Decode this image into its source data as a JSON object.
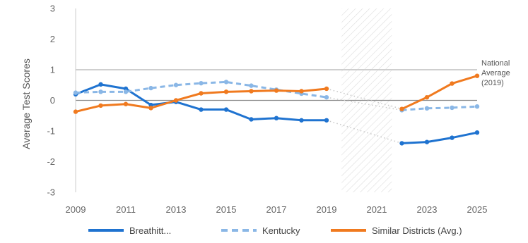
{
  "chart_data": {
    "type": "line",
    "ylabel": "Average Test Scores",
    "xlim": [
      2009,
      2025
    ],
    "ylim": [
      -3,
      3
    ],
    "x_ticks": [
      2009,
      2011,
      2013,
      2015,
      2017,
      2019,
      2021,
      2023,
      2025
    ],
    "y_ticks": [
      3,
      2,
      1,
      0,
      -1,
      -2,
      -3
    ],
    "gap_years": [
      2019.6,
      2021.6
    ],
    "reference_line": {
      "value": 1,
      "label_lines": [
        "National",
        "Average",
        "(2019)"
      ]
    },
    "zero_line": 0,
    "grid": false,
    "legend_position": "bottom",
    "series": [
      {
        "name": "Breathitt...",
        "color": "#1f73d0",
        "style": "solid",
        "segments": [
          {
            "x": [
              2009,
              2010,
              2011,
              2012,
              2013,
              2014,
              2015,
              2016,
              2017,
              2018,
              2019
            ],
            "y": [
              0.2,
              0.52,
              0.38,
              -0.15,
              -0.05,
              -0.3,
              -0.3,
              -0.62,
              -0.58,
              -0.65,
              -0.65
            ]
          },
          {
            "x": [
              2022,
              2023,
              2024,
              2025
            ],
            "y": [
              -1.4,
              -1.36,
              -1.22,
              -1.05
            ]
          }
        ],
        "bridge": {
          "from": [
            2019,
            -0.65
          ],
          "to": [
            2022,
            -1.4
          ]
        }
      },
      {
        "name": "Kentucky",
        "color": "#8ab7e6",
        "style": "dashed",
        "segments": [
          {
            "x": [
              2009,
              2010,
              2011,
              2012,
              2013,
              2014,
              2015,
              2016,
              2017,
              2018,
              2019
            ],
            "y": [
              0.25,
              0.28,
              0.28,
              0.4,
              0.5,
              0.56,
              0.6,
              0.48,
              0.35,
              0.22,
              0.1
            ]
          },
          {
            "x": [
              2022,
              2023,
              2024,
              2025
            ],
            "y": [
              -0.32,
              -0.26,
              -0.24,
              -0.2
            ]
          }
        ],
        "bridge": {
          "from": [
            2019,
            0.1
          ],
          "to": [
            2022,
            -0.32
          ]
        }
      },
      {
        "name": "Similar Districts (Avg.)",
        "color": "#f07a1f",
        "style": "solid",
        "segments": [
          {
            "x": [
              2009,
              2010,
              2011,
              2012,
              2013,
              2014,
              2015,
              2016,
              2017,
              2018,
              2019
            ],
            "y": [
              -0.37,
              -0.17,
              -0.12,
              -0.25,
              0.0,
              0.23,
              0.28,
              0.3,
              0.32,
              0.3,
              0.38
            ]
          },
          {
            "x": [
              2022,
              2023,
              2024,
              2025
            ],
            "y": [
              -0.28,
              0.1,
              0.55,
              0.8
            ]
          }
        ],
        "bridge": {
          "from": [
            2019,
            0.38
          ],
          "to": [
            2022,
            -0.28
          ]
        }
      }
    ]
  }
}
